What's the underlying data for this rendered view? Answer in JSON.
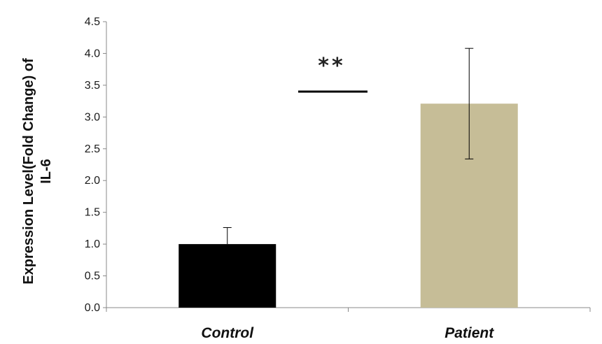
{
  "chart_data": {
    "type": "bar",
    "categories": [
      "Control",
      "Patient"
    ],
    "values": [
      1.0,
      3.21
    ],
    "error_bars": [
      {
        "upper": 1.26,
        "lower": 1.0
      },
      {
        "upper": 4.08,
        "lower": 2.34
      }
    ],
    "colors": [
      "#000000",
      "#c6bd97"
    ],
    "ylabel_lines": [
      "Expression Level(Fold Change) of",
      "IL-6"
    ],
    "xlabel": "",
    "title": "",
    "ylim": [
      0,
      4.5
    ],
    "yticks": [
      "0.0",
      "0.5",
      "1.0",
      "1.5",
      "2.0",
      "2.5",
      "3.0",
      "3.5",
      "4.0",
      "4.5"
    ],
    "significance": {
      "label": "**",
      "value": 3.4
    },
    "grid": false,
    "legend": "none"
  }
}
